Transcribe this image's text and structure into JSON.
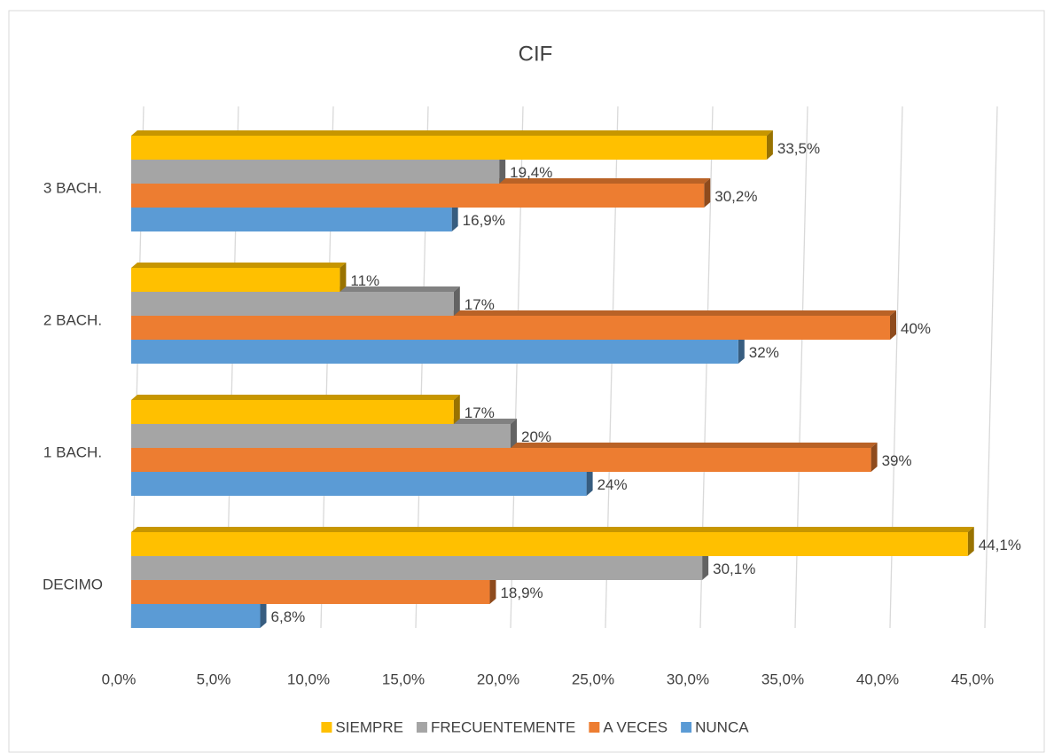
{
  "chart_data": {
    "type": "bar3d_horizontal",
    "title": "CIF",
    "categories": [
      "DECIMO",
      "1 BACH.",
      "2 BACH.",
      "3 BACH."
    ],
    "series": [
      {
        "name": "SIEMPRE",
        "color": "#ffc000",
        "values": [
          44.1,
          17,
          11,
          33.5
        ],
        "value_labels": [
          "44,1%",
          "17%",
          "11%",
          "33,5%"
        ]
      },
      {
        "name": "FRECUENTEMENTE",
        "color": "#a5a5a5",
        "values": [
          30.1,
          20,
          17,
          19.4
        ],
        "value_labels": [
          "30,1%",
          "20%",
          "17%",
          "19,4%"
        ]
      },
      {
        "name": "A VECES",
        "color": "#ed7d31",
        "values": [
          18.9,
          39,
          40,
          30.2
        ],
        "value_labels": [
          "18,9%",
          "39%",
          "40%",
          "30,2%"
        ]
      },
      {
        "name": "NUNCA",
        "color": "#5b9bd5",
        "values": [
          6.8,
          24,
          32,
          16.9
        ],
        "value_labels": [
          "6,8%",
          "24%",
          "32%",
          "16,9%"
        ]
      }
    ],
    "xlim": [
      0,
      45
    ],
    "xticks": [
      {
        "value": 0,
        "label": "0,0%"
      },
      {
        "value": 5,
        "label": "5,0%"
      },
      {
        "value": 10,
        "label": "10,0%"
      },
      {
        "value": 15,
        "label": "15,0%"
      },
      {
        "value": 20,
        "label": "20,0%"
      },
      {
        "value": 25,
        "label": "25,0%"
      },
      {
        "value": 30,
        "label": "30,0%"
      },
      {
        "value": 35,
        "label": "35,0%"
      },
      {
        "value": 40,
        "label": "40,0%"
      },
      {
        "value": 45,
        "label": "45,0%"
      }
    ],
    "grid": true,
    "legend": "bottom"
  }
}
